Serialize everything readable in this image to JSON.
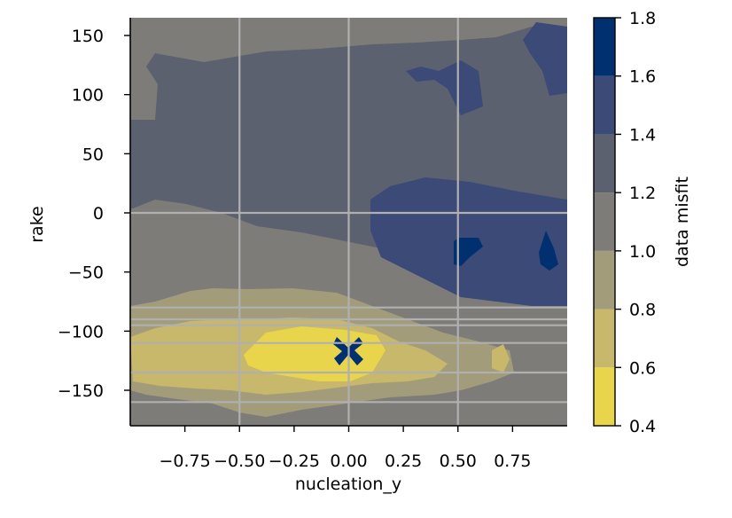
{
  "chart_data": {
    "type": "heatmap",
    "subtype": "filled-contour",
    "xlabel": "nucleation_y",
    "ylabel": "rake",
    "xlim": [
      -1.0,
      1.0
    ],
    "ylim": [
      -180,
      165
    ],
    "x_ticks": [
      -0.75,
      -0.5,
      -0.25,
      0.0,
      0.25,
      0.5,
      0.75
    ],
    "x_tick_labels": [
      "−0.75",
      "−0.50",
      "−0.25",
      "0.00",
      "0.25",
      "0.50",
      "0.75"
    ],
    "y_ticks": [
      150,
      100,
      50,
      0,
      -50,
      -100,
      -150
    ],
    "y_tick_labels": [
      "150",
      "100",
      "50",
      "0",
      "−50",
      "−100",
      "−150"
    ],
    "grid": true,
    "grid_x_lines": [
      -0.5,
      0.0,
      0.5
    ],
    "grid_y_lines": [
      0,
      -80,
      -90,
      -95,
      -110,
      -135,
      -160
    ],
    "colorbar": {
      "label": "data misfit",
      "levels": [
        0.4,
        0.6,
        0.8,
        1.0,
        1.2,
        1.4,
        1.6,
        1.8
      ],
      "tick_labels": [
        "0.4",
        "0.6",
        "0.8",
        "1.0",
        "1.2",
        "1.4",
        "1.6",
        "1.8"
      ],
      "colors": [
        "#e9d54c",
        "#c7b86b",
        "#a39c7a",
        "#7d7c78",
        "#5c6170",
        "#3b4a77",
        "#00306f"
      ]
    },
    "contour_regions": [
      {
        "level_range": [
          0.8,
          1.0
        ],
        "description": "broad band",
        "x_range": [
          -1.0,
          1.0
        ],
        "y_range": [
          -175,
          -75
        ]
      },
      {
        "level_range": [
          0.6,
          0.8
        ],
        "description": "central basin",
        "x_range": [
          -0.9,
          0.4
        ],
        "y_range": [
          -160,
          -95
        ]
      },
      {
        "level_range": [
          0.4,
          0.6
        ],
        "description": "core",
        "x_range": [
          -0.45,
          0.2
        ],
        "y_range": [
          -145,
          -100
        ]
      },
      {
        "level_range": [
          1.2,
          1.4
        ],
        "description": "upper background",
        "x_range": [
          -1.0,
          1.0
        ],
        "y_range": [
          -60,
          165
        ]
      },
      {
        "level_range": [
          1.4,
          1.6
        ],
        "description": "right lobe",
        "x_range": [
          0.1,
          1.0
        ],
        "y_range": [
          -80,
          30
        ]
      },
      {
        "level_range": [
          1.6,
          1.8
        ],
        "description": "local maxima",
        "points": [
          [
            0.55,
            -35
          ],
          [
            0.9,
            -33
          ],
          [
            0.0,
            -118
          ]
        ]
      }
    ]
  }
}
